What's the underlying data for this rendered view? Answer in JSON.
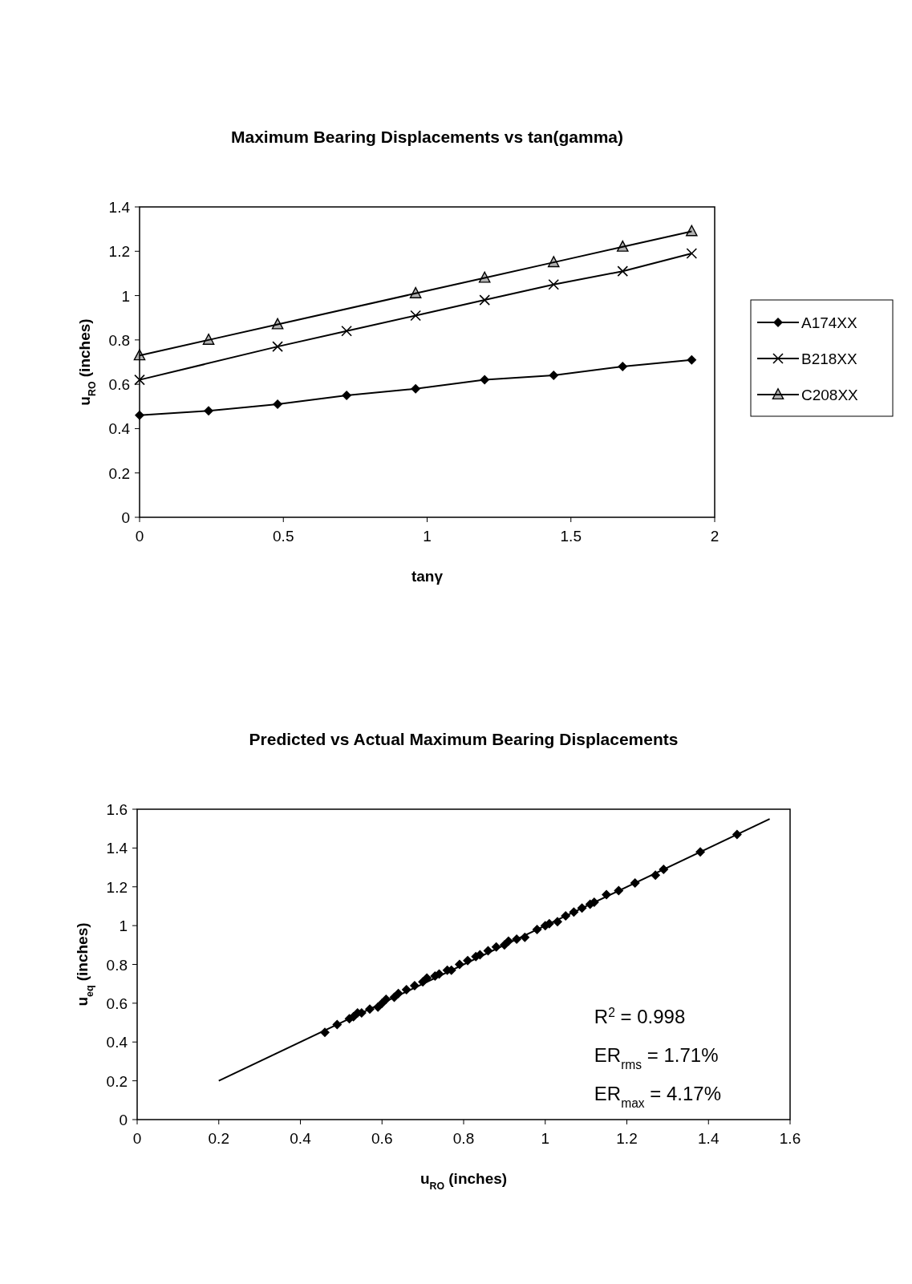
{
  "chart_data": [
    {
      "type": "line",
      "title": "Maximum Bearing Displacements vs tan(gamma)",
      "xlabel": "tanγ",
      "ylabel": "u$_{RO}$ (inches)",
      "xlim": [
        0,
        2
      ],
      "xticks": [
        0,
        0.5,
        1,
        1.5,
        2
      ],
      "ylim": [
        0,
        1.4
      ],
      "yticks": [
        0,
        0.2,
        0.4,
        0.6,
        0.8,
        1,
        1.2,
        1.4
      ],
      "grid": false,
      "legend": "right",
      "line_style": "solid",
      "series": [
        {
          "name": "A174XX",
          "color": "#000000",
          "marker": "diamond",
          "x": [
            0,
            0.24,
            0.48,
            0.72,
            0.96,
            1.2,
            1.44,
            1.68,
            1.92
          ],
          "values": [
            0.46,
            0.48,
            0.51,
            0.55,
            0.58,
            0.62,
            0.64,
            0.68,
            0.71
          ]
        },
        {
          "name": "B218XX",
          "color": "#000000",
          "marker": "cross",
          "x": [
            0,
            0.48,
            0.72,
            0.96,
            1.2,
            1.44,
            1.68,
            1.92
          ],
          "values": [
            0.62,
            0.77,
            0.84,
            0.91,
            0.98,
            1.05,
            1.11,
            1.19
          ]
        },
        {
          "name": "C208XX",
          "color": "#000000",
          "marker": "triangle",
          "x": [
            0,
            0.24,
            0.48,
            0.96,
            1.2,
            1.44,
            1.68,
            1.92
          ],
          "values": [
            0.73,
            0.8,
            0.87,
            1.01,
            1.08,
            1.15,
            1.22,
            1.29
          ]
        }
      ]
    },
    {
      "type": "scatter",
      "title": "Predicted vs Actual Maximum Bearing Displacements",
      "xlabel": "u$_{RO}$ (inches)",
      "ylabel": "u$_{eq}$ (inches)",
      "xlim": [
        0,
        1.6
      ],
      "xticks": [
        0,
        0.2,
        0.4,
        0.6,
        0.8,
        1,
        1.2,
        1.4,
        1.6
      ],
      "ylim": [
        0,
        1.6
      ],
      "yticks": [
        0,
        0.2,
        0.4,
        0.6,
        0.8,
        1,
        1.2,
        1.4,
        1.6
      ],
      "grid": false,
      "legend": false,
      "annotations": [
        "R$^{2}$ = 0.998",
        "ER$_{rms}$ = 1.71%",
        "ER$_{max}$ = 4.17%"
      ],
      "series": [
        {
          "color": "#000000",
          "marker": "diamond",
          "x": [
            0.46,
            0.49,
            0.52,
            0.53,
            0.54,
            0.55,
            0.57,
            0.59,
            0.6,
            0.61,
            0.63,
            0.64,
            0.66,
            0.68,
            0.7,
            0.71,
            0.73,
            0.74,
            0.76,
            0.77,
            0.79,
            0.81,
            0.83,
            0.84,
            0.86,
            0.88,
            0.9,
            0.91,
            0.93,
            0.95,
            0.98,
            1.0,
            1.01,
            1.03,
            1.05,
            1.07,
            1.09,
            1.11,
            1.12,
            1.15,
            1.18,
            1.22,
            1.27,
            1.29,
            1.38,
            1.47
          ],
          "values": [
            0.45,
            0.49,
            0.52,
            0.53,
            0.55,
            0.55,
            0.57,
            0.58,
            0.6,
            0.62,
            0.63,
            0.65,
            0.67,
            0.69,
            0.71,
            0.73,
            0.74,
            0.75,
            0.77,
            0.77,
            0.8,
            0.82,
            0.84,
            0.85,
            0.87,
            0.89,
            0.9,
            0.92,
            0.93,
            0.94,
            0.98,
            1.0,
            1.01,
            1.02,
            1.05,
            1.07,
            1.09,
            1.11,
            1.12,
            1.16,
            1.18,
            1.22,
            1.26,
            1.29,
            1.38,
            1.47
          ]
        },
        {
          "type": "line",
          "color": "#000000",
          "marker": "none",
          "x": [
            0.2,
            1.55
          ],
          "values": [
            0.2,
            1.55
          ]
        }
      ]
    }
  ]
}
